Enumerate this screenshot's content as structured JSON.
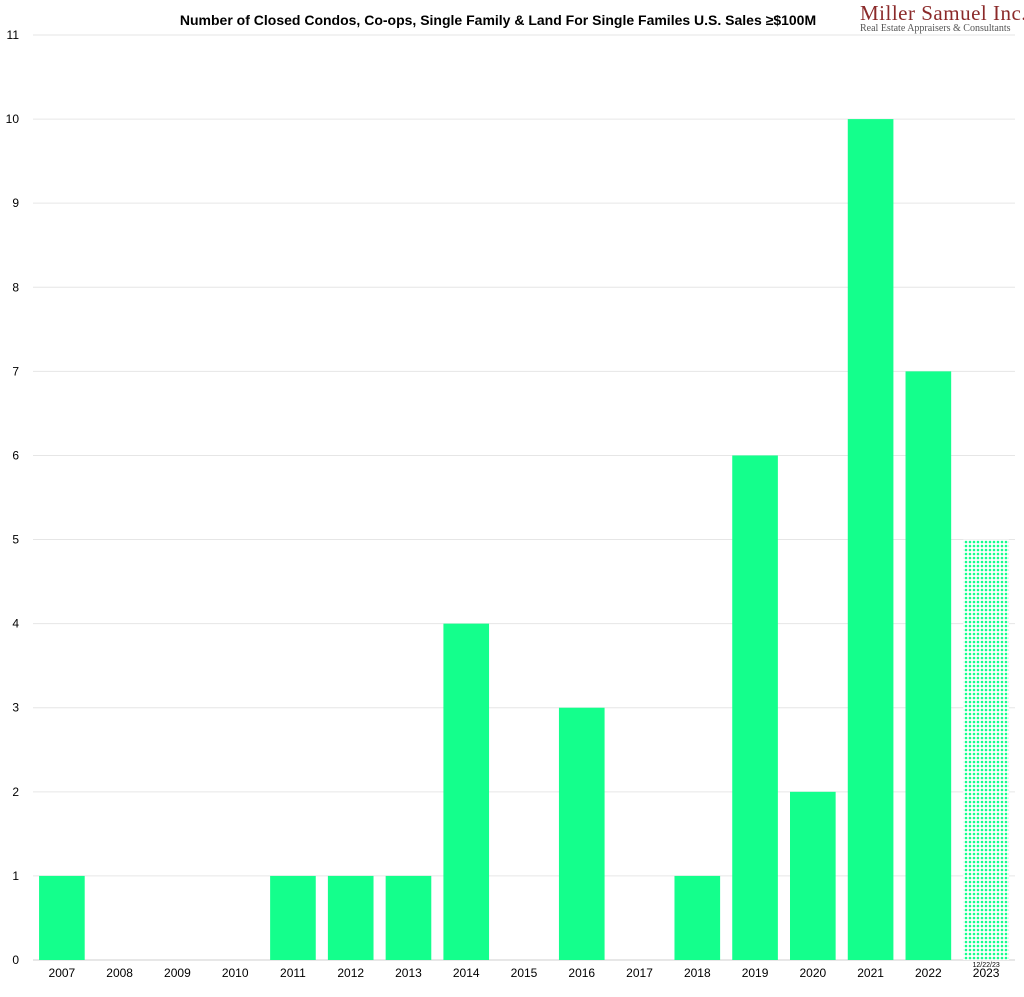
{
  "logo": {
    "name": "Miller Samuel Inc.",
    "tagline": "Real Estate Appraisers & Consultants",
    "color": "#8b2a2a"
  },
  "chart_data": {
    "type": "bar",
    "title": "Number of Closed Condos, Co-ops, Single Family & Land For Single Familes U.S. Sales ≥$100M",
    "xlabel": "",
    "ylabel": "",
    "ylim": [
      0,
      11
    ],
    "yticks": [
      0,
      1,
      2,
      3,
      4,
      5,
      6,
      7,
      8,
      9,
      10,
      11
    ],
    "grid": true,
    "bar_color": "#14ff8c",
    "categories": [
      "2007",
      "2008",
      "2009",
      "2010",
      "2011",
      "2012",
      "2013",
      "2014",
      "2015",
      "2016",
      "2017",
      "2018",
      "2019",
      "2020",
      "2021",
      "2022",
      "2023"
    ],
    "values": [
      1,
      0,
      0,
      0,
      1,
      1,
      1,
      4,
      0,
      3,
      0,
      1,
      6,
      2,
      10,
      7,
      5
    ],
    "partial_year": {
      "category": "2023",
      "note": "12/22/23",
      "pattern": "dotted"
    }
  }
}
